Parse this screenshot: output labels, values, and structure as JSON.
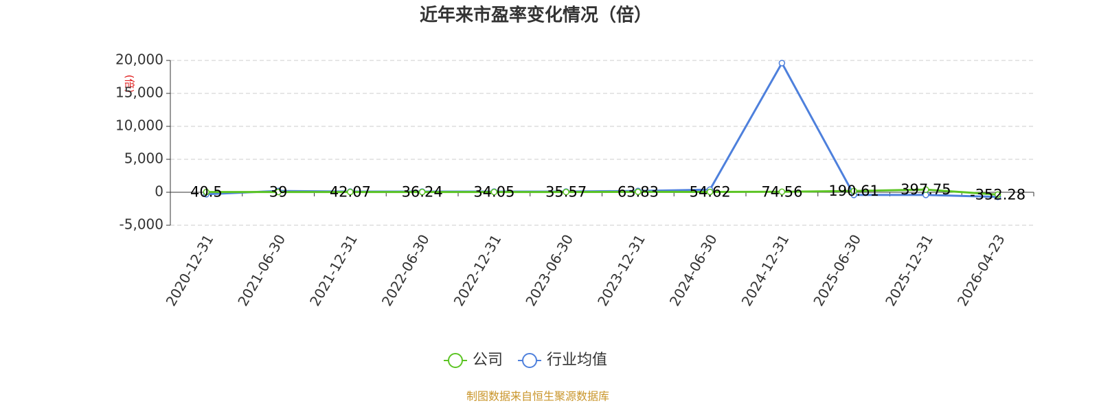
{
  "chart_data": {
    "type": "line",
    "title": "近年来市盈率变化情况（倍）",
    "y_label": "(倍)",
    "source": "制图数据来自恒生聚源数据库",
    "categories": [
      "2020-12-31",
      "2021-06-30",
      "2021-12-31",
      "2022-06-30",
      "2022-12-31",
      "2023-06-30",
      "2023-12-31",
      "2024-06-30",
      "2024-12-31",
      "2025-06-30",
      "2025-12-31",
      "2026-04-23"
    ],
    "series": [
      {
        "name": "公司",
        "color": "#5cc424",
        "values": [
          40.5,
          39,
          42.07,
          36.24,
          34.05,
          35.57,
          63.83,
          54.62,
          74.56,
          190.61,
          397.75,
          -352.28
        ]
      },
      {
        "name": "行业均值",
        "color": "#4e80dc",
        "values": [
          -300,
          200,
          100,
          100,
          100,
          100,
          200,
          400,
          19600,
          -400,
          -400,
          -700
        ]
      }
    ],
    "ylim": [
      -5000,
      20000
    ],
    "yticks": [
      {
        "value": -5000,
        "label": "-5,000"
      },
      0,
      {
        "value": 5000,
        "label": "5,000"
      },
      {
        "value": 10000,
        "label": "10,000"
      },
      {
        "value": 15000,
        "label": "15,000"
      },
      {
        "value": 20000,
        "label": "20,000"
      }
    ],
    "grid": true
  }
}
